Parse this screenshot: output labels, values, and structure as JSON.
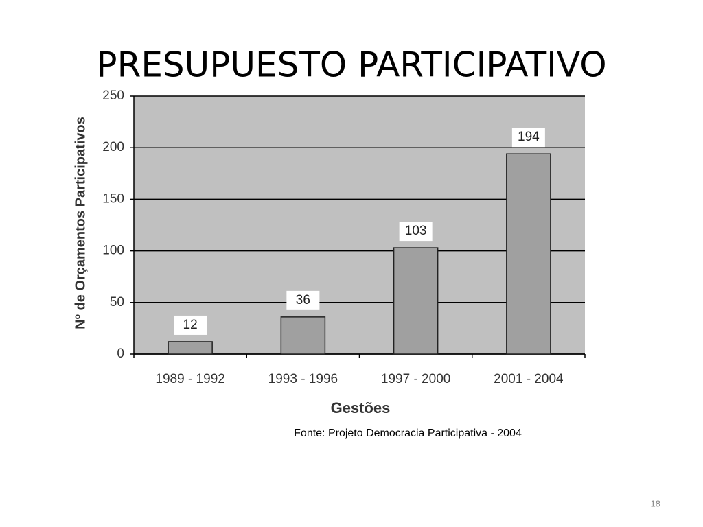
{
  "chart_data": {
    "type": "bar",
    "title": "PRESUPUESTO PARTICIPATIVO",
    "categories": [
      "1989 - 1992",
      "1993 - 1996",
      "1997 - 2000",
      "2001 - 2004"
    ],
    "values": [
      12,
      36,
      103,
      194
    ],
    "color": "#a0a0a0",
    "xlabel": "Gestões",
    "ylabel": "Nº de Orçamentos Participativos",
    "ylim": [
      0,
      250
    ],
    "yticks": [
      0,
      50,
      100,
      150,
      200,
      250
    ],
    "grid": true,
    "source": "Fonte: Projeto Democracia Participativa - 2004",
    "page_number": "18"
  }
}
